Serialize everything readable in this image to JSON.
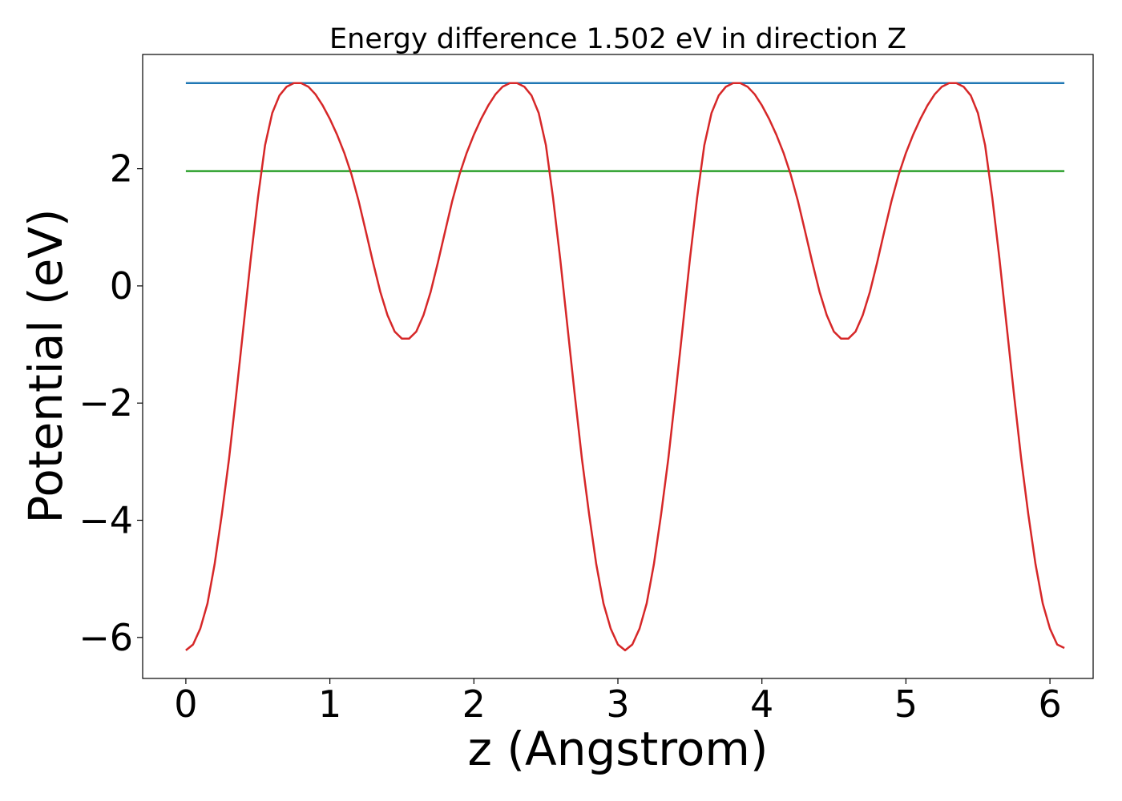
{
  "chart_data": {
    "type": "line",
    "title": "Energy difference 1.502 eV in direction Z",
    "xlabel": "z (Angstrom)",
    "ylabel": "Potential (eV)",
    "xlim": [
      -0.3,
      6.3
    ],
    "ylim": [
      -6.7,
      3.95
    ],
    "grid": false,
    "xticks": [
      0,
      1,
      2,
      3,
      4,
      5,
      6
    ],
    "xtick_labels": [
      "0",
      "1",
      "2",
      "3",
      "4",
      "5",
      "6"
    ],
    "yticks": [
      -6,
      -4,
      -2,
      0,
      2
    ],
    "ytick_labels": [
      "−6",
      "−4",
      "−2",
      "0",
      "2"
    ],
    "series": [
      {
        "color": "#d62728",
        "x": [
          0.0,
          0.05,
          0.1,
          0.15,
          0.2,
          0.25,
          0.3,
          0.35,
          0.4,
          0.45,
          0.5,
          0.55,
          0.6,
          0.65,
          0.7,
          0.75,
          0.8,
          0.85,
          0.9,
          0.95,
          1.0,
          1.05,
          1.1,
          1.15,
          1.2,
          1.25,
          1.3,
          1.35,
          1.4,
          1.45,
          1.5,
          1.55,
          1.6,
          1.65,
          1.7,
          1.75,
          1.8,
          1.85,
          1.9,
          1.95,
          2.0,
          2.05,
          2.1,
          2.15,
          2.2,
          2.25,
          2.3,
          2.35,
          2.4,
          2.45,
          2.5,
          2.55,
          2.6,
          2.65,
          2.7,
          2.75,
          2.8,
          2.85,
          2.9,
          2.95,
          3.0,
          3.05,
          3.1,
          3.15,
          3.2,
          3.25,
          3.3,
          3.35,
          3.4,
          3.45,
          3.5,
          3.55,
          3.6,
          3.65,
          3.7,
          3.75,
          3.8,
          3.85,
          3.9,
          3.95,
          4.0,
          4.05,
          4.1,
          4.15,
          4.2,
          4.25,
          4.3,
          4.35,
          4.4,
          4.45,
          4.5,
          4.55,
          4.6,
          4.65,
          4.7,
          4.75,
          4.8,
          4.85,
          4.9,
          4.95,
          5.0,
          5.05,
          5.1,
          5.15,
          5.2,
          5.25,
          5.3,
          5.35,
          5.4,
          5.45,
          5.5,
          5.55,
          5.6,
          5.65,
          5.7,
          5.75,
          5.8,
          5.85,
          5.9,
          5.95,
          6.0,
          6.05,
          6.1
        ],
        "y": [
          -6.22,
          -6.12,
          -5.85,
          -5.42,
          -4.75,
          -3.9,
          -2.95,
          -1.85,
          -0.7,
          0.45,
          1.5,
          2.4,
          2.95,
          3.25,
          3.4,
          3.46,
          3.46,
          3.4,
          3.27,
          3.08,
          2.85,
          2.58,
          2.27,
          1.9,
          1.45,
          0.93,
          0.4,
          -0.1,
          -0.5,
          -0.78,
          -0.9,
          -0.9,
          -0.78,
          -0.5,
          -0.1,
          0.4,
          0.93,
          1.45,
          1.9,
          2.27,
          2.58,
          2.85,
          3.08,
          3.27,
          3.4,
          3.46,
          3.46,
          3.4,
          3.25,
          2.95,
          2.4,
          1.5,
          0.45,
          -0.7,
          -1.85,
          -2.95,
          -3.9,
          -4.75,
          -5.42,
          -5.85,
          -6.12,
          -6.22,
          -6.12,
          -5.85,
          -5.42,
          -4.75,
          -3.9,
          -2.95,
          -1.85,
          -0.7,
          0.45,
          1.5,
          2.4,
          2.95,
          3.25,
          3.4,
          3.46,
          3.46,
          3.4,
          3.27,
          3.08,
          2.85,
          2.58,
          2.27,
          1.9,
          1.45,
          0.93,
          0.4,
          -0.1,
          -0.5,
          -0.78,
          -0.9,
          -0.9,
          -0.78,
          -0.5,
          -0.1,
          0.4,
          0.93,
          1.45,
          1.9,
          2.27,
          2.58,
          2.85,
          3.08,
          3.27,
          3.4,
          3.46,
          3.46,
          3.4,
          3.25,
          2.95,
          2.4,
          1.5,
          0.45,
          -0.7,
          -1.85,
          -2.95,
          -3.9,
          -4.75,
          -5.42,
          -5.85,
          -6.12,
          -6.18
        ]
      },
      {
        "color": "#1f77b4",
        "x": [
          0.0,
          6.1
        ],
        "y": [
          3.46,
          3.46
        ]
      },
      {
        "color": "#2ca02c",
        "x": [
          0.0,
          6.1
        ],
        "y": [
          1.96,
          1.96
        ]
      }
    ]
  }
}
